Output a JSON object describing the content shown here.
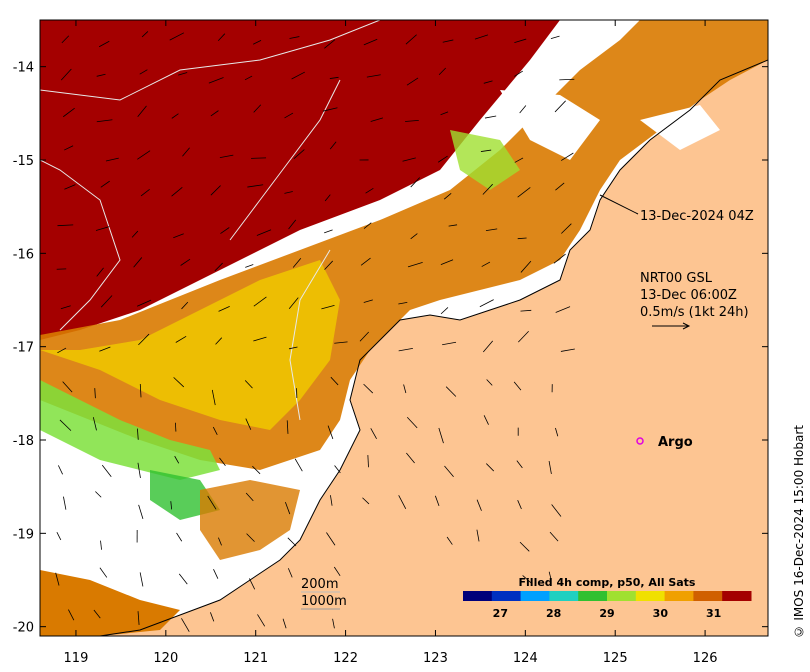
{
  "map": {
    "lon_ticks": [
      "119",
      "120",
      "121",
      "122",
      "123",
      "124",
      "125",
      "126"
    ],
    "lat_ticks": [
      "-14",
      "-15",
      "-16",
      "-17",
      "-18",
      "-19",
      "-20"
    ],
    "lon_values": [
      119,
      120,
      121,
      122,
      123,
      124,
      125,
      126
    ],
    "lat_values": [
      -14,
      -15,
      -16,
      -17,
      -18,
      -19,
      -20
    ],
    "extent": {
      "lon_min": 118.6,
      "lon_max": 126.7,
      "lat_max": -13.5,
      "lat_min": -20.1
    },
    "colors": {
      "land": "#fdc592",
      "no_data": "#ffffff",
      "hot": "#a40000",
      "warm": "#d97a00",
      "mid": "#f0c800",
      "cool": "#7ee03c"
    }
  },
  "annotations": {
    "time_label": "13-Dec-2024 04Z",
    "current_title": "NRT00 GSL",
    "current_time": "13-Dec 06:00Z",
    "current_scale": "0.5m/s (1kt 24h)",
    "argo_label": "Argo",
    "argo_color": "#e000e0",
    "isobath_1": "200m",
    "isobath_2": "1000m",
    "credit": "© IMOS 16-Dec-2024 15:00 Hobart"
  },
  "colorbar": {
    "title": "Filled 4h comp, p50, All Sats",
    "ticks": [
      "27",
      "28",
      "29",
      "30",
      "31"
    ],
    "tick_values": [
      27,
      28,
      29,
      30,
      31
    ],
    "range": [
      26.3,
      31.7
    ],
    "colors": [
      "#00007a",
      "#0030c0",
      "#00a0ff",
      "#20d0c0",
      "#30c030",
      "#a0e030",
      "#f0e000",
      "#f0a000",
      "#d06000",
      "#a40000"
    ]
  }
}
